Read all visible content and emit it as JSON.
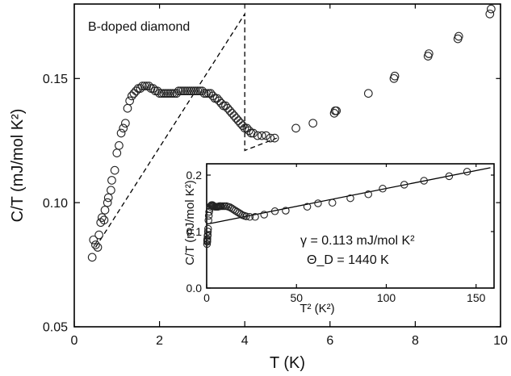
{
  "chart_data": [
    {
      "type": "scatter",
      "annotation": "B-doped diamond",
      "xlabel": "T (K)",
      "ylabel": "C/T (mJ/mol K²)",
      "xlim": [
        0,
        10
      ],
      "ylim": [
        0.05,
        0.18
      ],
      "xticks": [
        "0",
        "2",
        "4",
        "6",
        "8",
        "10"
      ],
      "yticks": [
        "0.05",
        "0.10",
        "0.15"
      ],
      "series": [
        {
          "marker": "open-circle",
          "x": [
            0.42,
            0.45,
            0.5,
            0.55,
            0.58,
            0.62,
            0.65,
            0.7,
            0.72,
            0.78,
            0.8,
            0.86,
            0.88,
            0.95,
            1.0,
            1.05,
            1.1,
            1.15,
            1.2,
            1.25,
            1.3,
            1.35,
            1.4,
            1.45,
            1.5,
            1.55,
            1.6,
            1.65,
            1.7,
            1.75,
            1.8,
            1.85,
            1.9,
            1.95,
            2.0,
            2.05,
            2.1,
            2.15,
            2.2,
            2.25,
            2.3,
            2.35,
            2.4,
            2.45,
            2.5,
            2.55,
            2.6,
            2.65,
            2.7,
            2.75,
            2.8,
            2.85,
            2.9,
            2.95,
            3.0,
            3.05,
            3.1,
            3.15,
            3.2,
            3.25,
            3.3,
            3.35,
            3.4,
            3.45,
            3.5,
            3.55,
            3.6,
            3.65,
            3.7,
            3.75,
            3.8,
            3.85,
            3.9,
            3.95,
            4.0,
            4.05,
            4.1,
            4.15,
            4.2,
            4.3,
            4.4,
            4.5,
            4.6,
            4.7,
            5.2,
            5.6,
            6.1,
            6.12,
            6.15,
            6.9,
            7.5,
            7.52,
            8.3,
            8.32,
            9.0,
            9.02,
            9.75,
            9.78
          ],
          "y": [
            0.078,
            0.085,
            0.083,
            0.082,
            0.087,
            0.092,
            0.094,
            0.093,
            0.097,
            0.1,
            0.102,
            0.105,
            0.109,
            0.113,
            0.12,
            0.123,
            0.128,
            0.13,
            0.132,
            0.138,
            0.141,
            0.143,
            0.144,
            0.145,
            0.146,
            0.146,
            0.147,
            0.147,
            0.147,
            0.147,
            0.146,
            0.146,
            0.145,
            0.145,
            0.144,
            0.144,
            0.144,
            0.144,
            0.144,
            0.144,
            0.144,
            0.144,
            0.144,
            0.145,
            0.145,
            0.145,
            0.145,
            0.145,
            0.145,
            0.145,
            0.145,
            0.145,
            0.145,
            0.145,
            0.145,
            0.144,
            0.144,
            0.144,
            0.144,
            0.143,
            0.142,
            0.142,
            0.141,
            0.14,
            0.139,
            0.139,
            0.138,
            0.137,
            0.136,
            0.135,
            0.134,
            0.133,
            0.132,
            0.131,
            0.13,
            0.13,
            0.129,
            0.128,
            0.128,
            0.127,
            0.127,
            0.127,
            0.126,
            0.126,
            0.13,
            0.132,
            0.136,
            0.137,
            0.137,
            0.144,
            0.15,
            0.151,
            0.159,
            0.16,
            0.166,
            0.167,
            0.176,
            0.178
          ]
        },
        {
          "style": "dashed",
          "x": [
            0.5,
            4.0,
            4.0,
            4.0,
            4.75
          ],
          "y": [
            0.082,
            0.176,
            0.176,
            0.121,
            0.126
          ]
        }
      ]
    },
    {
      "type": "scatter",
      "xlabel": "T² (K²)",
      "ylabel": "C/T (mJ/mol K²)",
      "xlim": [
        0,
        160
      ],
      "ylim": [
        0,
        0.22
      ],
      "xticks": [
        "0",
        "50",
        "100",
        "150"
      ],
      "yticks": [
        "0.0",
        "0.1",
        "0.2"
      ],
      "annotations": [
        "γ = 0.113 mJ/mol K²",
        "Θ_D = 1440 K"
      ],
      "series": [
        {
          "marker": "open-circle",
          "x": [
            0.2,
            0.25,
            0.3,
            0.35,
            0.4,
            0.5,
            0.6,
            0.7,
            0.8,
            1.0,
            1.2,
            1.4,
            1.7,
            2.0,
            2.4,
            2.8,
            3.2,
            3.6,
            4.0,
            4.5,
            5.0,
            5.5,
            6.0,
            6.5,
            7.0,
            7.5,
            8.0,
            9.0,
            10,
            11,
            12,
            13,
            14,
            15,
            16,
            17,
            18,
            19,
            20,
            21,
            22,
            24,
            27,
            32,
            38,
            44,
            56,
            62,
            70,
            80,
            90,
            98,
            110,
            121,
            135,
            145
          ],
          "y": [
            0.078,
            0.085,
            0.083,
            0.082,
            0.087,
            0.092,
            0.094,
            0.1,
            0.105,
            0.12,
            0.128,
            0.135,
            0.14,
            0.144,
            0.146,
            0.147,
            0.147,
            0.146,
            0.145,
            0.144,
            0.144,
            0.144,
            0.144,
            0.144,
            0.145,
            0.145,
            0.145,
            0.145,
            0.145,
            0.145,
            0.144,
            0.143,
            0.141,
            0.139,
            0.137,
            0.135,
            0.133,
            0.131,
            0.129,
            0.128,
            0.127,
            0.126,
            0.126,
            0.13,
            0.136,
            0.137,
            0.144,
            0.15,
            0.151,
            0.159,
            0.166,
            0.176,
            0.183,
            0.19,
            0.198,
            0.206
          ]
        },
        {
          "style": "solid",
          "x": [
            0,
            158
          ],
          "y": [
            0.113,
            0.213
          ]
        }
      ]
    }
  ]
}
